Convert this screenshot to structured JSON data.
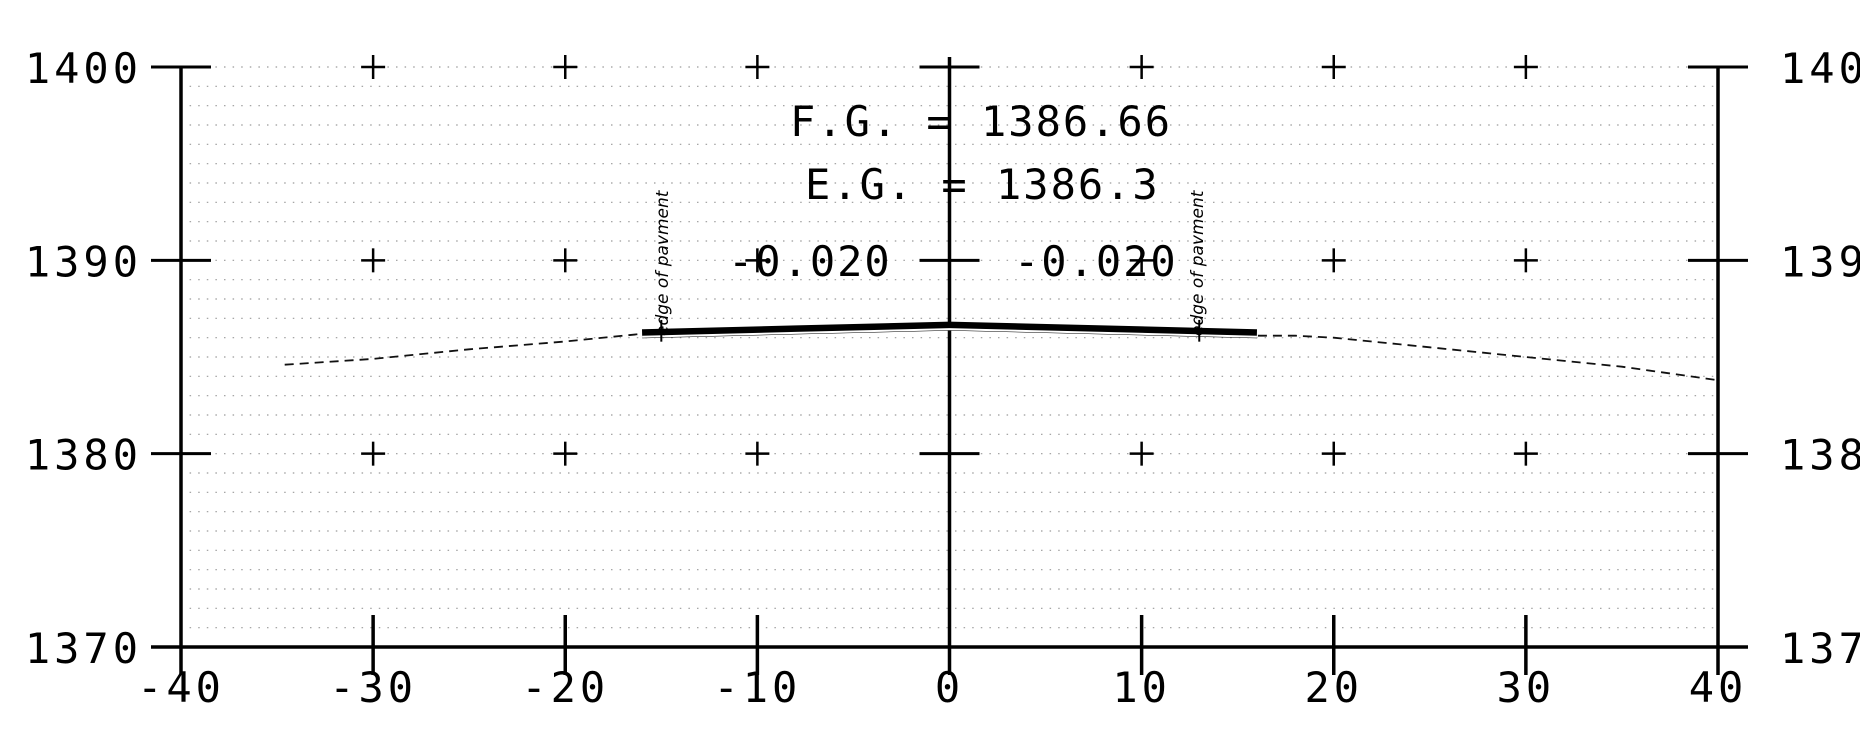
{
  "chart_data": {
    "type": "line",
    "title": "",
    "xlabel": "",
    "ylabel": "",
    "xlim": [
      -40,
      40
    ],
    "ylim": [
      1370,
      1400
    ],
    "x_ticks": [
      "-40",
      "-30",
      "-20",
      "-10",
      "0",
      "10",
      "20",
      "30",
      "40"
    ],
    "y_ticks": [
      "1370",
      "1380",
      "1390",
      "1400"
    ],
    "grid": true,
    "series": [
      {
        "style": "dashed",
        "x": [
          -34.6,
          -30,
          -25,
          -20,
          -16,
          -12,
          -8,
          -4,
          0,
          4,
          8,
          12,
          16,
          18,
          20,
          25,
          30,
          35,
          40
        ],
        "y": [
          1384.6,
          1384.9,
          1385.4,
          1385.8,
          1386.2,
          1386.3,
          1386.4,
          1386.6,
          1386.7,
          1386.6,
          1386.5,
          1386.3,
          1386.1,
          1386.1,
          1386.0,
          1385.5,
          1385.0,
          1384.5,
          1383.8
        ]
      },
      {
        "style": "solid-thick",
        "x": [
          -16,
          -8,
          0,
          8,
          16
        ],
        "y": [
          1386.2,
          1386.4,
          1386.6,
          1386.4,
          1386.2
        ]
      }
    ],
    "annotations": {
      "fg": "F.G.  =  1386.66",
      "eg": "E.G.  =  1386.3",
      "slope_left": "-0.020",
      "slope_right": "-0.020",
      "edge_left": "edge of pavment",
      "edge_right": "edge of pavment"
    },
    "edge_of_pavement_x": [
      -15,
      13
    ]
  }
}
